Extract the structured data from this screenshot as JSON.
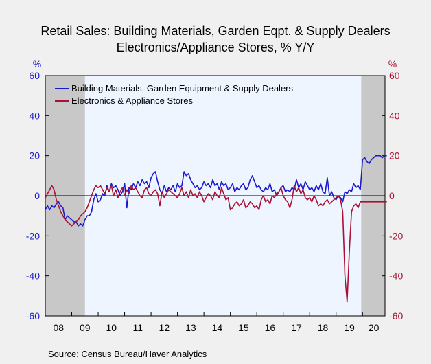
{
  "chart_data": {
    "type": "line",
    "title_line1": "Retail Sales: Building Materials, Garden Eqpt. & Supply Dealers",
    "title_line2": "Electronics/Appliance Stores, % Y/Y",
    "left_axis_unit": "%",
    "right_axis_unit": "%",
    "ylim": [
      -60,
      60
    ],
    "yticks": [
      "60",
      "40",
      "20",
      "0",
      "-20",
      "-40",
      "-60"
    ],
    "xlim": [
      2008.0,
      2020.85
    ],
    "xtick_labels": [
      "08",
      "09",
      "10",
      "11",
      "12",
      "13",
      "14",
      "15",
      "16",
      "17",
      "18",
      "19",
      "20"
    ],
    "recessions": [
      [
        2008.0,
        2009.5
      ],
      [
        2019.95,
        2020.85
      ]
    ],
    "colors": {
      "building": "#1a1acc",
      "electronics": "#aa1133",
      "recession": "#c8c8c8",
      "plot_bg": "#eef5ff"
    },
    "series": [
      {
        "name": "Building Materials, Garden Equipment & Supply Dealers",
        "color": "#1a1acc",
        "start": 2008.0,
        "step_months": 1,
        "values": [
          -7,
          -5,
          -7,
          -5,
          -6,
          -4,
          -3,
          -5,
          -6,
          -12,
          -10,
          -11,
          -12,
          -13,
          -13,
          -15,
          -14,
          -15,
          -12,
          -10,
          -10,
          -8,
          -2,
          1,
          -3,
          -2,
          1,
          0,
          5,
          2,
          6,
          4,
          5,
          3,
          0,
          2,
          6,
          -6,
          4,
          3,
          6,
          4,
          7,
          5,
          8,
          6,
          7,
          4,
          9,
          11,
          12,
          7,
          3,
          1,
          5,
          2,
          4,
          3,
          5,
          2,
          6,
          4,
          5,
          12,
          10,
          11,
          8,
          6,
          4,
          5,
          3,
          4,
          7,
          5,
          6,
          4,
          8,
          5,
          6,
          3,
          7,
          5,
          6,
          3,
          4,
          6,
          2,
          4,
          3,
          5,
          6,
          3,
          4,
          8,
          10,
          7,
          4,
          5,
          3,
          2,
          4,
          3,
          6,
          2,
          3,
          0,
          2,
          4,
          5,
          2,
          3,
          2,
          4,
          3,
          8,
          4,
          6,
          3,
          7,
          5,
          3,
          4,
          2,
          5,
          3,
          6,
          2,
          1,
          9,
          0,
          2,
          -1,
          -2,
          0,
          -1,
          -3,
          2,
          1,
          3,
          2,
          6,
          4,
          5,
          3,
          18,
          19,
          17,
          16,
          18,
          19,
          20,
          20,
          20,
          19,
          20,
          20
        ]
      },
      {
        "name": "Electronics & Appliance Stores",
        "color": "#aa1133",
        "start": 2008.0,
        "step_months": 1,
        "values": [
          -1,
          1,
          3,
          5,
          3,
          -2,
          -5,
          -8,
          -10,
          -12,
          -13,
          -14,
          -15,
          -14,
          -13,
          -12,
          -10,
          -9,
          -8,
          -6,
          -3,
          0,
          3,
          5,
          4,
          5,
          3,
          1,
          4,
          2,
          5,
          0,
          3,
          -1,
          2,
          4,
          0,
          3,
          1,
          5,
          3,
          4,
          2,
          0,
          -1,
          3,
          4,
          1,
          0,
          2,
          3,
          1,
          -5,
          2,
          -1,
          1,
          3,
          2,
          1,
          0,
          -1,
          1,
          4,
          0,
          2,
          -1,
          3,
          0,
          1,
          -1,
          2,
          0,
          -3,
          -1,
          1,
          0,
          -2,
          2,
          0,
          -1,
          4,
          1,
          -2,
          -1,
          -7,
          -6,
          -4,
          -3,
          -5,
          -4,
          -2,
          -6,
          -5,
          -3,
          -4,
          -6,
          -5,
          -7,
          -2,
          0,
          -3,
          -2,
          -4,
          0,
          -1,
          1,
          2,
          4,
          0,
          -2,
          -3,
          -6,
          -2,
          5,
          2,
          4,
          1,
          3,
          -1,
          -2,
          -1,
          -3,
          0,
          -2,
          -5,
          -4,
          -5,
          -3,
          -2,
          -4,
          -3,
          -2,
          -1,
          0,
          -2,
          -8,
          -40,
          -53,
          -28,
          -8,
          -5,
          -4,
          -6,
          -3,
          -3,
          -3,
          -3,
          -3,
          -3,
          -3,
          -3,
          -3,
          -3,
          -3,
          -3,
          -3
        ]
      }
    ],
    "legend_placement": "top-left",
    "grid": false,
    "source": "Source:   Census Bureau/Haver Analytics"
  }
}
